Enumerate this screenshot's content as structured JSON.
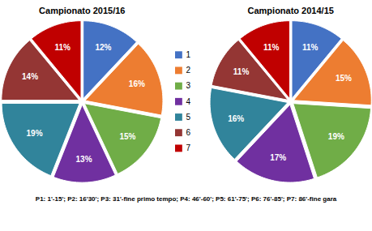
{
  "chart_data": [
    {
      "type": "pie",
      "title": "Campionato 2015/16",
      "categories": [
        "1",
        "2",
        "3",
        "4",
        "5",
        "6",
        "7"
      ],
      "values": [
        12,
        16,
        15,
        13,
        19,
        14,
        11
      ],
      "value_labels": [
        "12%",
        "16%",
        "15%",
        "13%",
        "19%",
        "14%",
        "11%"
      ],
      "colors": [
        "#4472C4",
        "#ED7D31",
        "#70AD47",
        "#7030A0",
        "#31849B",
        "#943634",
        "#C00000"
      ],
      "data_labels": true,
      "legend": "right"
    },
    {
      "type": "pie",
      "title": "Campionato 2014/15",
      "categories": [
        "1",
        "2",
        "3",
        "4",
        "5",
        "6",
        "7"
      ],
      "values": [
        11,
        15,
        19,
        17,
        16,
        11,
        11
      ],
      "value_labels": [
        "11%",
        "15%",
        "19%",
        "17%",
        "16%",
        "11%",
        "11%"
      ],
      "colors": [
        "#4472C4",
        "#ED7D31",
        "#70AD47",
        "#7030A0",
        "#31849B",
        "#943634",
        "#C00000"
      ],
      "data_labels": true
    }
  ],
  "caption": "P1: 1'-15'; P2: 16'30'; P3: 31'-fine primo tempo; P4: 46'-60'; P5: 61'-75'; P6: 76'-85'; P7: 86'-fine gara"
}
